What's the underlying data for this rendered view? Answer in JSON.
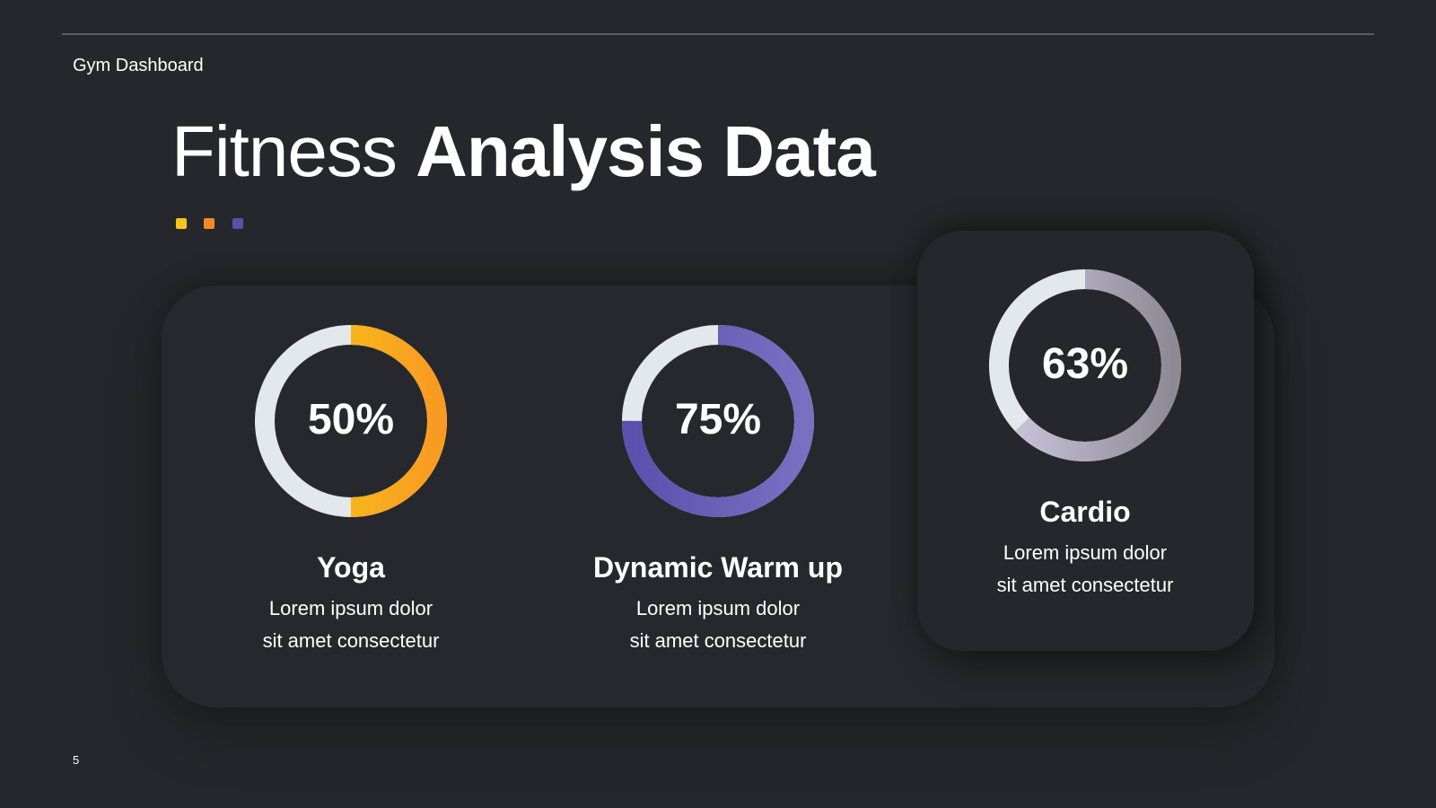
{
  "header": {
    "label": "Gym Dashboard"
  },
  "title": {
    "light": "Fitness ",
    "bold": "Analysis Data"
  },
  "dots": {
    "colors": [
      "#f5c518",
      "#f5892a",
      "#5b4fa8"
    ]
  },
  "chart_data": {
    "type": "pie",
    "series": [
      {
        "name": "Yoga",
        "value": 50,
        "value_label": "50%",
        "description": "Lorem ipsum dolor sit amet consectetur",
        "colors": [
          "#f7cf13",
          "#f99a23"
        ],
        "track": "#e3e8ec"
      },
      {
        "name": "Dynamic Warm up",
        "value": 75,
        "value_label": "75%",
        "description": "Lorem ipsum dolor sit amet consectetur",
        "colors": [
          "#5d4fae",
          "#7a70c2"
        ],
        "track": "#e3e8ec"
      },
      {
        "name": "Cardio",
        "value": 63,
        "value_label": "63%",
        "description": "Lorem ipsum dolor sit amet consectetur",
        "colors": [
          "#cdc8e0",
          "#8e8a95"
        ],
        "track": "#e3e8ec"
      }
    ]
  },
  "footer": {
    "page_number": "5"
  }
}
